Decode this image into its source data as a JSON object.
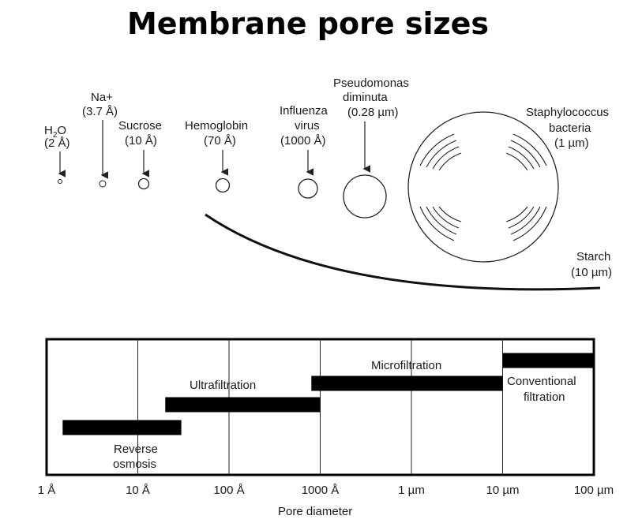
{
  "title": "Membrane pore sizes",
  "particles": [
    {
      "name": "H2O",
      "size": "(2 Å)"
    },
    {
      "name": "Na+",
      "size": "(3.7 Å)"
    },
    {
      "name": "Sucrose",
      "size": "(10 Å)"
    },
    {
      "name": "Hemoglobin",
      "size": "(70 Å)"
    },
    {
      "name1": "Influenza",
      "name2": "virus",
      "size": "(1000 Å)"
    },
    {
      "name1": "Pseudomonas",
      "name2": "diminuta",
      "size": "(0.28 µm)"
    },
    {
      "name1": "Staphylococcus",
      "name2": "bacteria",
      "size": "(1 µm)"
    },
    {
      "name": "Starch",
      "size": "(10 µm)"
    }
  ],
  "chart": {
    "xlabel": "Pore diameter",
    "ticks": [
      "1 Å",
      "10 Å",
      "100 Å",
      "1000 Å",
      "1 µm",
      "10 µm",
      "100 µm"
    ]
  },
  "chart_data": {
    "type": "bar",
    "xlabel": "Pore diameter",
    "x_scale": "log",
    "x_ticks": [
      "1 Å",
      "10 Å",
      "100 Å",
      "1000 Å",
      "1 µm",
      "10 µm",
      "100 µm"
    ],
    "series": [
      {
        "name": "Reverse osmosis",
        "range": [
          "1.5 Å",
          "30 Å"
        ]
      },
      {
        "name": "Ultrafiltration",
        "range": [
          "20 Å",
          "1000 Å"
        ]
      },
      {
        "name": "Microfiltration",
        "range": [
          "800 Å",
          "10 µm"
        ]
      },
      {
        "name": "Conventional filtration",
        "range": [
          "10 µm",
          "100 µm"
        ]
      }
    ],
    "labels": {
      "reverse_osmosis": [
        "Reverse",
        "osmosis"
      ],
      "ultrafiltration": "Ultrafiltration",
      "microfiltration": "Microfiltration",
      "conventional": [
        "Conventional",
        "filtration"
      ]
    }
  }
}
